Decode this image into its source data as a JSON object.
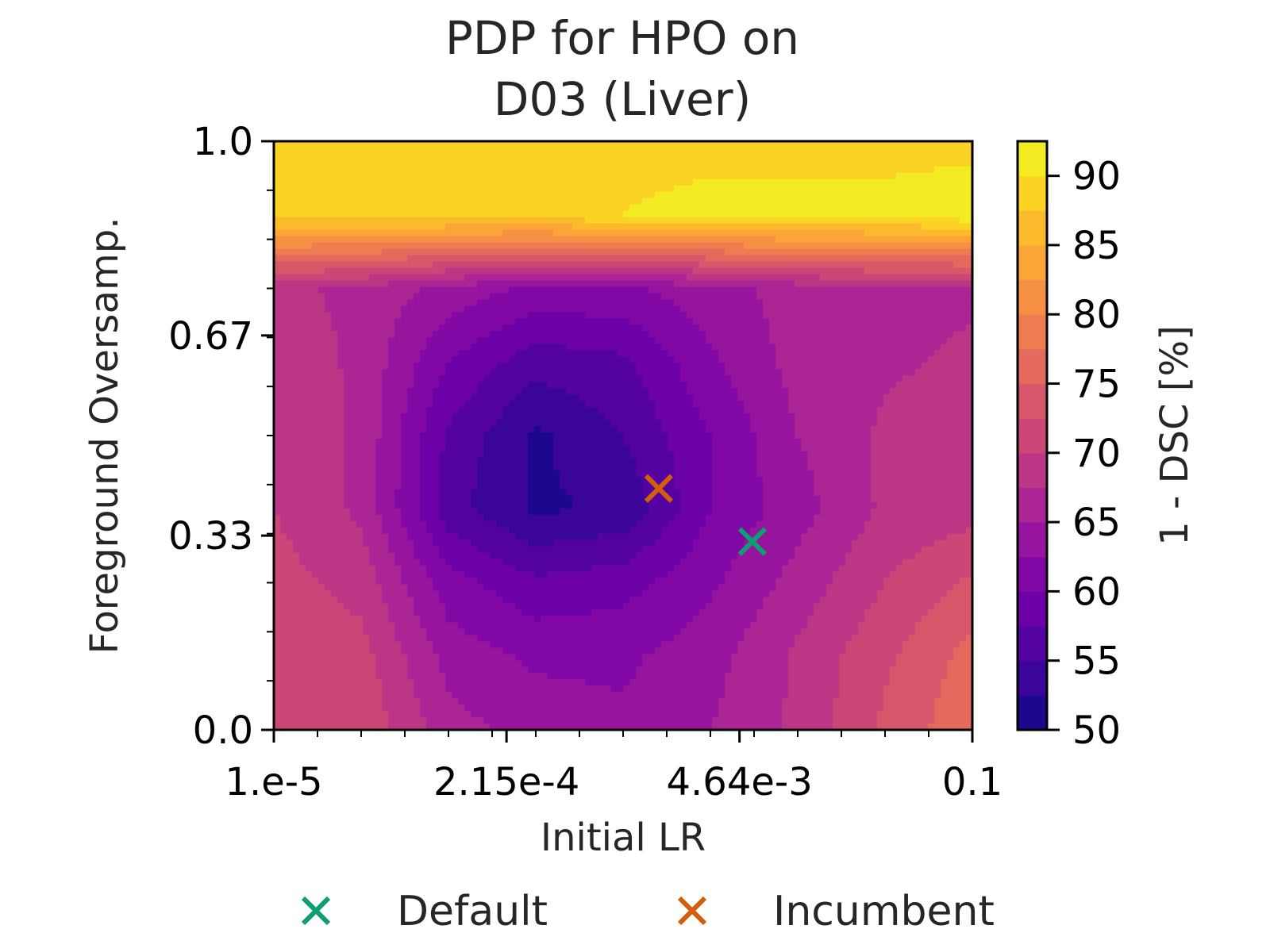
{
  "chart_data": {
    "type": "heatmap",
    "title_lines": [
      "PDP for HPO on",
      "D03 (Liver)"
    ],
    "xlabel": "Initial LR",
    "ylabel": "Foreground Oversamp.",
    "colorbar_label": "1 - DSC [%]",
    "x_scale": "log",
    "xlim": [
      1e-05,
      0.1
    ],
    "ylim": [
      0.0,
      1.0
    ],
    "x_ticks": [
      {
        "value": 1e-05,
        "label": "1.e-5"
      },
      {
        "value": 0.000215,
        "label": "2.15e-4"
      },
      {
        "value": 0.00464,
        "label": "4.64e-3"
      },
      {
        "value": 0.1,
        "label": "0.1"
      }
    ],
    "y_ticks": [
      {
        "value": 0.0,
        "label": "0.0"
      },
      {
        "value": 0.33,
        "label": "0.33"
      },
      {
        "value": 0.67,
        "label": "0.67"
      },
      {
        "value": 1.0,
        "label": "1.0"
      }
    ],
    "colorbar_range": [
      50,
      92.5
    ],
    "colorbar_ticks": [
      50,
      55,
      60,
      65,
      70,
      75,
      80,
      85,
      90
    ],
    "colormap": "plasma",
    "grid_x_exponents": [
      -5.0,
      -4.5,
      -4.0,
      -3.5,
      -3.0,
      -2.5,
      -2.0,
      -1.5,
      -1.0
    ],
    "grid_y": [
      0.0,
      0.125,
      0.25,
      0.375,
      0.5,
      0.625,
      0.75,
      0.875,
      1.0
    ],
    "z": [
      [
        72,
        72,
        66,
        64,
        63,
        65,
        68,
        73,
        77
      ],
      [
        72,
        71,
        64,
        62,
        62,
        64,
        68,
        72,
        76
      ],
      [
        71,
        69,
        61,
        58,
        59,
        62,
        66,
        70,
        73
      ],
      [
        70,
        67,
        56,
        52,
        53,
        60,
        64,
        68,
        69
      ],
      [
        70,
        67,
        57,
        52,
        55,
        60,
        65,
        68,
        70
      ],
      [
        69,
        67,
        60,
        56,
        57,
        62,
        66,
        67,
        68
      ],
      [
        68,
        67,
        64,
        62,
        62,
        64,
        66,
        67,
        67
      ],
      [
        89,
        89,
        89,
        89,
        90,
        91,
        91,
        91,
        92
      ],
      [
        89,
        89,
        89,
        89,
        89,
        89,
        89,
        89,
        89
      ]
    ],
    "series": [
      {
        "name": "Default",
        "x": 0.0055,
        "y": 0.32,
        "marker": "x",
        "color": "#0e9e74"
      },
      {
        "name": "Incumbent",
        "x": 0.0016,
        "y": 0.41,
        "marker": "x",
        "color": "#d45f0a"
      }
    ],
    "legend": {
      "placement": "bottom-center"
    }
  }
}
